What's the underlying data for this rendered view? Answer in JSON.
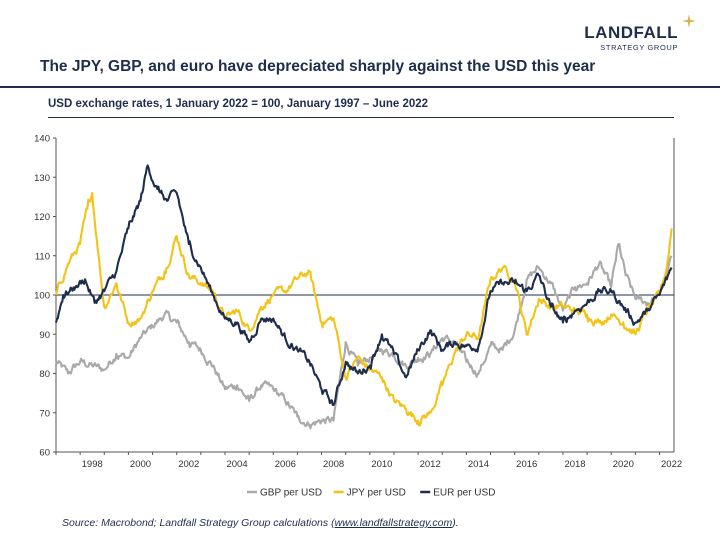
{
  "header": {
    "logo_main": "LANDFALL",
    "logo_sub": "STRATEGY GROUP",
    "title": "The JPY, GBP, and euro have depreciated sharply against the USD this year"
  },
  "colors": {
    "navy": "#1f2d4d",
    "gold": "#f2c318",
    "gray": "#a9a9a9",
    "logo_star": "#d9b24a"
  },
  "footer": {
    "source_prefix": "Source: Macrobond; Landfall Strategy Group calculations (",
    "source_link": "www.landfallstrategy.com",
    "source_suffix": ")."
  },
  "chart_data": {
    "type": "line",
    "subtitle": "USD exchange rates, 1 January 2022 = 100, January 1997 – June 2022",
    "xlabel": "",
    "ylabel": "",
    "xlim": [
      1997,
      2022.6
    ],
    "ylim": [
      60,
      140
    ],
    "x_ticks": [
      "1998",
      "2000",
      "2002",
      "2004",
      "2006",
      "2008",
      "2010",
      "2012",
      "2014",
      "2016",
      "2018",
      "2020",
      "2022"
    ],
    "y_ticks": [
      "60",
      "70",
      "80",
      "90",
      "100",
      "110",
      "120",
      "130",
      "140"
    ],
    "reference_line": 100,
    "legend_position": "bottom",
    "series": [
      {
        "name": "GBP per USD",
        "color": "#a9a9a9",
        "points": [
          [
            1997.0,
            83
          ],
          [
            1997.5,
            80
          ],
          [
            1998.0,
            83
          ],
          [
            1998.5,
            82
          ],
          [
            1999.0,
            81
          ],
          [
            1999.5,
            85
          ],
          [
            2000.0,
            84
          ],
          [
            2000.5,
            89
          ],
          [
            2001.0,
            92
          ],
          [
            2001.5,
            95
          ],
          [
            2002.0,
            93
          ],
          [
            2002.5,
            88
          ],
          [
            2003.0,
            86
          ],
          [
            2003.5,
            82
          ],
          [
            2004.0,
            76
          ],
          [
            2004.5,
            77
          ],
          [
            2005.0,
            73
          ],
          [
            2005.5,
            77
          ],
          [
            2006.0,
            76
          ],
          [
            2006.5,
            73
          ],
          [
            2007.0,
            69
          ],
          [
            2007.5,
            67
          ],
          [
            2008.0,
            68
          ],
          [
            2008.5,
            68
          ],
          [
            2009.0,
            88
          ],
          [
            2009.5,
            82
          ],
          [
            2010.0,
            84
          ],
          [
            2010.5,
            86
          ],
          [
            2011.0,
            85
          ],
          [
            2011.5,
            82
          ],
          [
            2012.0,
            84
          ],
          [
            2012.5,
            85
          ],
          [
            2013.0,
            89
          ],
          [
            2013.5,
            88
          ],
          [
            2014.0,
            83
          ],
          [
            2014.5,
            80
          ],
          [
            2015.0,
            87
          ],
          [
            2015.5,
            86
          ],
          [
            2016.0,
            91
          ],
          [
            2016.5,
            104
          ],
          [
            2017.0,
            107
          ],
          [
            2017.5,
            103
          ],
          [
            2018.0,
            96
          ],
          [
            2018.5,
            102
          ],
          [
            2019.0,
            103
          ],
          [
            2019.5,
            108
          ],
          [
            2020.0,
            102
          ],
          [
            2020.3,
            113
          ],
          [
            2020.6,
            105
          ],
          [
            2021.0,
            99
          ],
          [
            2021.5,
            98
          ],
          [
            2022.0,
            100
          ],
          [
            2022.3,
            105
          ],
          [
            2022.5,
            110
          ]
        ]
      },
      {
        "name": "JPY per USD",
        "color": "#f2c318",
        "points": [
          [
            1997.0,
            100
          ],
          [
            1997.5,
            108
          ],
          [
            1998.0,
            113
          ],
          [
            1998.3,
            122
          ],
          [
            1998.5,
            126
          ],
          [
            1998.8,
            108
          ],
          [
            1999.0,
            97
          ],
          [
            1999.5,
            103
          ],
          [
            2000.0,
            93
          ],
          [
            2000.5,
            94
          ],
          [
            2001.0,
            101
          ],
          [
            2001.5,
            106
          ],
          [
            2002.0,
            115
          ],
          [
            2002.5,
            105
          ],
          [
            2003.0,
            103
          ],
          [
            2003.5,
            101
          ],
          [
            2004.0,
            94
          ],
          [
            2004.5,
            96
          ],
          [
            2005.0,
            91
          ],
          [
            2005.5,
            97
          ],
          [
            2006.0,
            100
          ],
          [
            2006.5,
            101
          ],
          [
            2007.0,
            104
          ],
          [
            2007.5,
            106
          ],
          [
            2008.0,
            93
          ],
          [
            2008.5,
            94
          ],
          [
            2009.0,
            79
          ],
          [
            2009.5,
            84
          ],
          [
            2010.0,
            81
          ],
          [
            2010.5,
            79
          ],
          [
            2011.0,
            73
          ],
          [
            2011.5,
            71
          ],
          [
            2012.0,
            68
          ],
          [
            2012.5,
            70
          ],
          [
            2013.0,
            77
          ],
          [
            2013.5,
            85
          ],
          [
            2014.0,
            90
          ],
          [
            2014.5,
            89
          ],
          [
            2015.0,
            104
          ],
          [
            2015.5,
            107
          ],
          [
            2016.0,
            104
          ],
          [
            2016.5,
            90
          ],
          [
            2017.0,
            99
          ],
          [
            2017.5,
            97
          ],
          [
            2018.0,
            97
          ],
          [
            2018.5,
            96
          ],
          [
            2019.0,
            95
          ],
          [
            2019.5,
            93
          ],
          [
            2020.0,
            95
          ],
          [
            2020.5,
            93
          ],
          [
            2021.0,
            90
          ],
          [
            2021.5,
            96
          ],
          [
            2022.0,
            100
          ],
          [
            2022.3,
            107
          ],
          [
            2022.5,
            117
          ]
        ]
      },
      {
        "name": "EUR per USD",
        "color": "#1f2d4d",
        "points": [
          [
            1997.0,
            93
          ],
          [
            1997.3,
            100
          ],
          [
            1997.8,
            102
          ],
          [
            1998.2,
            104
          ],
          [
            1998.6,
            98
          ],
          [
            1999.0,
            101
          ],
          [
            1999.5,
            106
          ],
          [
            2000.0,
            117
          ],
          [
            2000.5,
            124
          ],
          [
            2000.8,
            133
          ],
          [
            2001.2,
            127
          ],
          [
            2001.6,
            124
          ],
          [
            2002.0,
            126
          ],
          [
            2002.5,
            113
          ],
          [
            2003.0,
            107
          ],
          [
            2003.5,
            100
          ],
          [
            2004.0,
            94
          ],
          [
            2004.5,
            93
          ],
          [
            2005.0,
            88
          ],
          [
            2005.5,
            94
          ],
          [
            2006.0,
            94
          ],
          [
            2006.5,
            89
          ],
          [
            2007.0,
            86
          ],
          [
            2007.5,
            83
          ],
          [
            2008.0,
            76
          ],
          [
            2008.5,
            72
          ],
          [
            2009.0,
            83
          ],
          [
            2009.5,
            80
          ],
          [
            2010.0,
            82
          ],
          [
            2010.5,
            90
          ],
          [
            2011.0,
            85
          ],
          [
            2011.5,
            79
          ],
          [
            2012.0,
            86
          ],
          [
            2012.5,
            91
          ],
          [
            2013.0,
            86
          ],
          [
            2013.5,
            88
          ],
          [
            2014.0,
            87
          ],
          [
            2014.5,
            87
          ],
          [
            2015.0,
            101
          ],
          [
            2015.5,
            103
          ],
          [
            2016.0,
            103
          ],
          [
            2016.5,
            101
          ],
          [
            2017.0,
            105
          ],
          [
            2017.5,
            97
          ],
          [
            2018.0,
            93
          ],
          [
            2018.5,
            96
          ],
          [
            2019.0,
            98
          ],
          [
            2019.5,
            101
          ],
          [
            2020.0,
            101
          ],
          [
            2020.5,
            97
          ],
          [
            2021.0,
            93
          ],
          [
            2021.5,
            96
          ],
          [
            2022.0,
            100
          ],
          [
            2022.3,
            104
          ],
          [
            2022.5,
            107
          ]
        ]
      }
    ]
  }
}
